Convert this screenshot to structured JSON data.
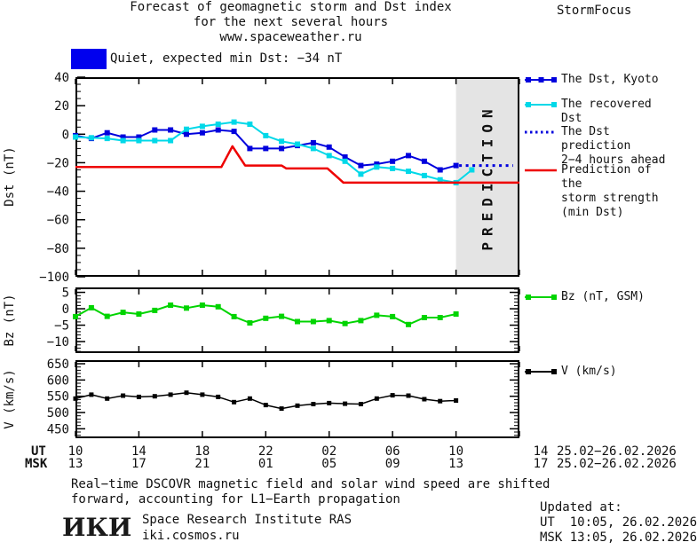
{
  "header": {
    "title_line1": "Forecast of geomagnetic storm and Dst index",
    "title_line2": "for the next several hours",
    "title_line3": "www.spaceweather.ru",
    "brand": "StormFocus"
  },
  "status": {
    "swatch_color": "#0000ee",
    "text": "Quiet, expected min Dst: −34 nT"
  },
  "chart_data": [
    {
      "type": "line",
      "panel": "dst",
      "ylabel": "Dst (nT)",
      "ylim": [
        -100,
        40
      ],
      "yticks": [
        40,
        20,
        0,
        -20,
        -40,
        -60,
        -80,
        -100
      ],
      "y_minor_step": 5,
      "xlim_hours": [
        10,
        38
      ],
      "prediction_band": {
        "from_hour": 34,
        "to_hour": 38,
        "label": "PREDICTION",
        "fill": "#e4e4e4",
        "text_color": "#cbcbcb"
      },
      "series": [
        {
          "id": "dst-kyoto",
          "name": "The Dst, Kyoto",
          "color": "#0000dd",
          "marker": "square",
          "x_start_hour": 10,
          "x_step_hours": 1,
          "values": [
            -1,
            -3,
            1,
            -2,
            -2,
            3,
            3,
            0,
            1,
            3,
            2,
            -10,
            -10,
            -10,
            -8,
            -6,
            -9,
            -16,
            -22,
            -21,
            -19,
            -15,
            -19,
            -25,
            -22
          ]
        },
        {
          "id": "recovered-dst",
          "name": "The recovered Dst",
          "color": "#00d8e8",
          "marker": "square",
          "x_start_hour": 10,
          "x_step_hours": 1,
          "values": [
            -2,
            -2.5,
            -3,
            -4.5,
            -4.5,
            -4.5,
            -4.5,
            3.5,
            5.5,
            7,
            8.5,
            7,
            -1,
            -5,
            -7,
            -10,
            -15,
            -19,
            -28,
            -23,
            -24,
            -26,
            -29,
            -32,
            -34,
            -25
          ]
        },
        {
          "id": "dst-prediction",
          "name": "The Dst prediction 2−4 hours ahead",
          "color": "#0000dd",
          "marker": null,
          "dash": true,
          "x_hours": [
            34.2,
            37.6
          ],
          "values": [
            -22,
            -22
          ]
        },
        {
          "id": "storm-strength-prediction",
          "name": "Prediction of the storm strength (min Dst)",
          "color": "#ee0000",
          "marker": null,
          "x_hours": [
            10,
            19.2,
            19.9,
            20.7,
            23.0,
            23.3,
            25.9,
            26.9,
            38
          ],
          "values": [
            -23,
            -23,
            -8.5,
            -22,
            -22,
            -24,
            -24,
            -34,
            -34
          ]
        }
      ]
    },
    {
      "type": "line",
      "panel": "bz",
      "ylabel": "Bz (nT)",
      "ylim": [
        -13.5,
        6.5
      ],
      "yticks": [
        5,
        0,
        -5,
        -10
      ],
      "y_minor_step": 1,
      "xlim_hours": [
        10,
        38
      ],
      "series": [
        {
          "id": "bz",
          "name": "Bz (nT, GSM)",
          "color": "#00d400",
          "marker": "square",
          "x_start_hour": 10,
          "x_step_hours": 1,
          "values": [
            -2.4,
            0.3,
            -2.3,
            -1.1,
            -1.6,
            -0.5,
            1.1,
            0.2,
            1.1,
            0.6,
            -2.4,
            -4.3,
            -2.9,
            -2.3,
            -3.9,
            -3.9,
            -3.6,
            -4.5,
            -3.6,
            -2.0,
            -2.4,
            -4.8,
            -2.7,
            -2.7,
            -1.6
          ]
        }
      ]
    },
    {
      "type": "line",
      "panel": "v",
      "ylabel": "V (km/s)",
      "ylim": [
        421,
        661
      ],
      "yticks": [
        650,
        600,
        550,
        500,
        450
      ],
      "y_minor_step": 10,
      "xlim_hours": [
        10,
        38
      ],
      "series": [
        {
          "id": "v",
          "name": "V (km/s)",
          "color": "#000000",
          "marker": "square",
          "x_start_hour": 10,
          "x_step_hours": 1,
          "values": [
            543,
            555,
            543,
            552,
            548,
            550,
            555,
            561,
            555,
            548,
            532,
            543,
            523,
            512,
            521,
            526,
            529,
            527,
            526,
            543,
            553,
            552,
            541,
            535,
            537
          ]
        }
      ]
    }
  ],
  "xaxis": {
    "tick_hours": [
      10,
      14,
      18,
      22,
      26,
      30,
      34,
      38
    ],
    "ut_label": "UT",
    "msk_label": "MSK",
    "ut_values": [
      "10",
      "14",
      "18",
      "22",
      "02",
      "06",
      "10",
      "14"
    ],
    "msk_values": [
      "13",
      "17",
      "21",
      "01",
      "05",
      "09",
      "13",
      "17"
    ],
    "ut_date": "25.02−26.02.2026",
    "msk_date": "25.02−26.02.2026"
  },
  "legend": {
    "items": [
      {
        "label_lines": [
          "The Dst, Kyoto"
        ],
        "color": "#0000dd",
        "swatch": "squares3"
      },
      {
        "label_lines": [
          "The recovered Dst"
        ],
        "color": "#00d8e8",
        "swatch": "squares2"
      },
      {
        "label_lines": [
          "The Dst prediction",
          "2−4 hours ahead"
        ],
        "color": "#0000dd",
        "swatch": "dots"
      },
      {
        "label_lines": [
          "Prediction of the",
          "storm strength",
          "(min Dst)"
        ],
        "color": "#ee0000",
        "swatch": "plain"
      },
      {
        "label_lines": [
          "Bz (nT, GSM)"
        ],
        "color": "#00d400",
        "swatch": "squares2"
      },
      {
        "label_lines": [
          "V (km/s)"
        ],
        "color": "#000000",
        "swatch": "squares2"
      }
    ]
  },
  "footer": {
    "note_line1": "Real−time DSCOVR magnetic field and solar wind speed are shifted",
    "note_line2": "forward, accounting for L1−Earth propagation",
    "logo_text": "ИКИ",
    "institute": "Space Research Institute RAS",
    "institute_url": "iki.cosmos.ru",
    "updated_label": "Updated at:",
    "updated_ut": "UT  10:05, 26.02.2026",
    "updated_msk": "MSK 13:05, 26.02.2026"
  }
}
